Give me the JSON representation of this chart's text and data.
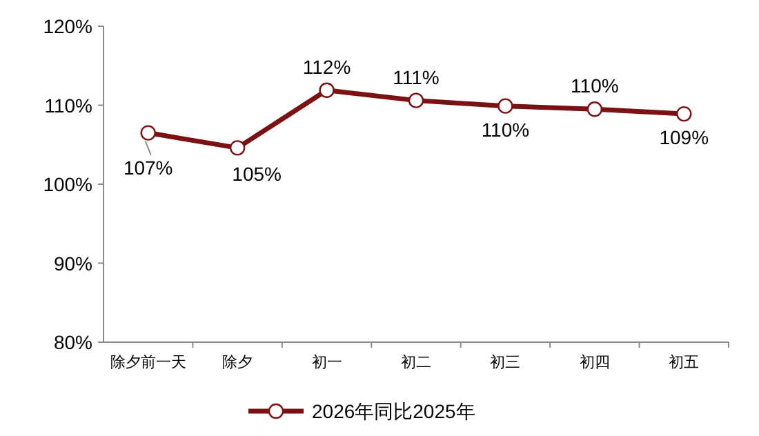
{
  "chart_data": {
    "type": "line",
    "categories": [
      "除夕前一天",
      "除夕",
      "初一",
      "初二",
      "初三",
      "初四",
      "初五"
    ],
    "series": [
      {
        "name": "2026年同比2025年",
        "color": "#7b1113",
        "values": [
          106.5,
          104.6,
          111.9,
          110.6,
          109.9,
          109.5,
          108.9
        ],
        "value_labels": [
          "107%",
          "105%",
          "112%",
          "111%",
          "110%",
          "110%",
          "109%"
        ]
      }
    ],
    "ylim": [
      80,
      120
    ],
    "yticks": [
      {
        "value": 80,
        "label": "80%"
      },
      {
        "value": 90,
        "label": "90%"
      },
      {
        "value": 100,
        "label": "100%"
      },
      {
        "value": 110,
        "label": "110%"
      },
      {
        "value": 120,
        "label": "120%"
      }
    ],
    "grid": false,
    "legend": "bottom",
    "marker": "circle",
    "line_style": "solid"
  }
}
